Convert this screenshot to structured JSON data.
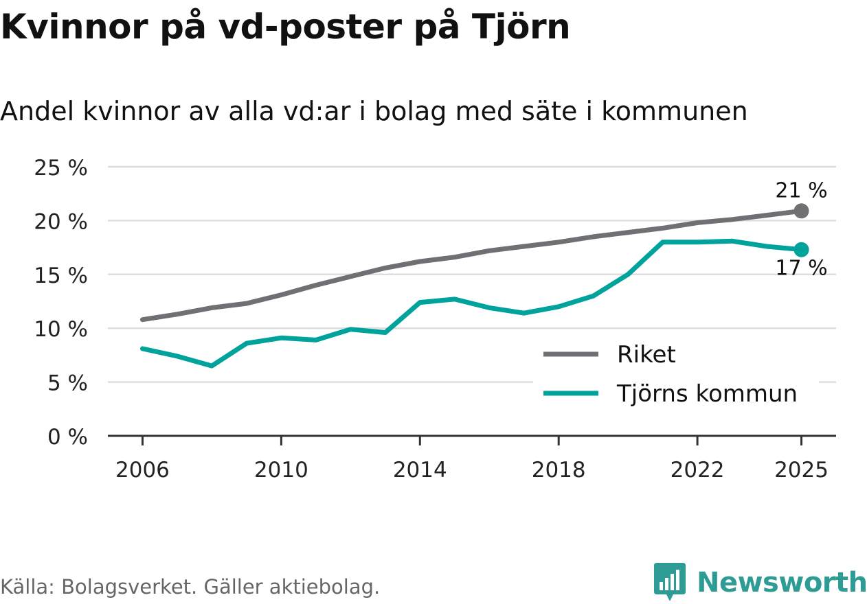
{
  "header": {
    "title": "Kvinnor på vd-poster på Tjörn",
    "subtitle": "Andel kvinnor av alla vd:ar i bolag med säte i kommunen"
  },
  "footer": {
    "source": "Källa: Bolagsverket. Gäller aktiebolag.",
    "brand": "Newsworthy"
  },
  "colors": {
    "riket": "#707074",
    "tjorn": "#00a39b",
    "grid": "#dddddd",
    "axis": "#333333",
    "brand": "#2e9b94"
  },
  "chart_data": {
    "type": "line",
    "title": "Andel kvinnor av alla vd:ar i bolag med säte i kommunen",
    "xlabel": "",
    "ylabel": "",
    "ylim": [
      0,
      25
    ],
    "yticks": [
      0,
      5,
      10,
      15,
      20,
      25
    ],
    "ytick_labels": [
      "0 %",
      "5 %",
      "10 %",
      "15 %",
      "20 %",
      "25 %"
    ],
    "xticks": [
      2006,
      2010,
      2014,
      2018,
      2022,
      2025
    ],
    "xtick_labels": [
      "2006",
      "2010",
      "2014",
      "2018",
      "2022",
      "2025"
    ],
    "grid": true,
    "legend_position": "bottom-right",
    "x": [
      2006,
      2007,
      2008,
      2009,
      2010,
      2011,
      2012,
      2013,
      2014,
      2015,
      2016,
      2017,
      2018,
      2019,
      2020,
      2021,
      2022,
      2023,
      2024,
      2025
    ],
    "series": [
      {
        "name": "Riket",
        "color": "#707074",
        "end_label": "21 %",
        "values": [
          10.8,
          11.3,
          11.9,
          12.3,
          13.1,
          14.0,
          14.8,
          15.6,
          16.2,
          16.6,
          17.2,
          17.6,
          18.0,
          18.5,
          18.9,
          19.3,
          19.8,
          20.1,
          20.5,
          20.9
        ]
      },
      {
        "name": "Tjörns kommun",
        "color": "#00a39b",
        "end_label": "17 %",
        "values": [
          8.1,
          7.4,
          6.5,
          8.6,
          9.1,
          8.9,
          9.9,
          9.6,
          12.4,
          12.7,
          11.9,
          11.4,
          12.0,
          13.0,
          15.0,
          18.0,
          18.0,
          18.1,
          17.6,
          17.3
        ]
      }
    ]
  }
}
